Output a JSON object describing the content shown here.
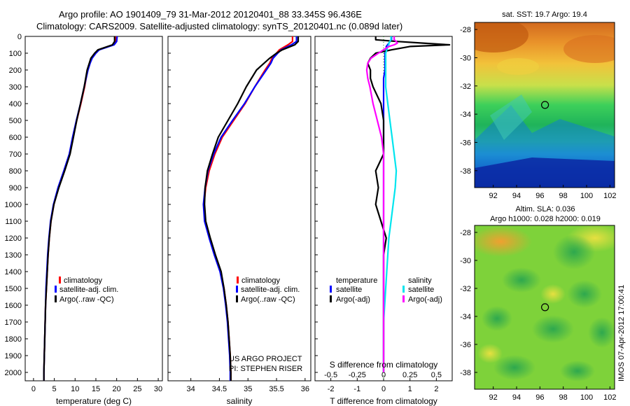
{
  "header": {
    "title_line1": "Argo profile: AO 1901409_79 31-Mar-2012 20120401_88 33.345S 96.436E",
    "title_line2": "Climatology: CARS2009. Satellite-adjusted climatology: synTS_20120401.nc (0.089d later)"
  },
  "colors": {
    "climatology": "#ff0000",
    "satellite": "#0000ff",
    "argo": "#000000",
    "salinity_satellite": "#00e5ee",
    "salinity_argo": "#ff00ff"
  },
  "legend_profile": {
    "climatology": "climatology",
    "satellite": "satellite-adj. clim.",
    "argo": "Argo(..raw -QC)"
  },
  "legend_diff": {
    "temperature_header": "temperature",
    "salinity_header": "salinity",
    "t_satellite": "satellite",
    "t_argo": "Argo(-adj)",
    "s_satellite": "satellite",
    "s_argo": "Argo(-adj)"
  },
  "credits": {
    "project": "US ARGO PROJECT",
    "pi": "PI: STEPHEN RISER"
  },
  "map_sst": {
    "title": "sat. SST: 19.7 Argo: 19.4"
  },
  "map_sla": {
    "title_line1": "Altim. SLA: 0.036",
    "title_line2": "Argo h1000: 0.028 h2000: 0.019"
  },
  "footer": {
    "stamp": "IMOS 07-Apr-2012 17:00:41"
  },
  "chart_data": [
    {
      "type": "line",
      "xlabel": "temperature (deg C)",
      "xlim": [
        -2,
        31
      ],
      "ylim": [
        0,
        2050
      ],
      "y_inverted": true,
      "xticks": [
        "0",
        "5",
        "10",
        "15",
        "20",
        "25",
        "30"
      ],
      "yticks": [
        "0",
        "100",
        "200",
        "300",
        "400",
        "500",
        "600",
        "700",
        "800",
        "900",
        "1000",
        "1100",
        "1200",
        "1300",
        "1400",
        "1500",
        "1600",
        "1700",
        "1800",
        "1900",
        "2000"
      ],
      "depth": [
        0,
        30,
        50,
        80,
        100,
        130,
        160,
        200,
        300,
        400,
        500,
        600,
        700,
        800,
        900,
        1000,
        1100,
        1200,
        1300,
        1400,
        1500,
        1600,
        1700,
        1800,
        1900,
        2000,
        2050
      ],
      "series": [
        {
          "name": "climatology",
          "values": [
            19.8,
            19.8,
            19.2,
            15.6,
            14.9,
            14.0,
            13.5,
            13.0,
            12.3,
            11.4,
            10.4,
            9.5,
            8.7,
            7.4,
            6.0,
            4.9,
            4.2,
            3.8,
            3.5,
            3.3,
            3.1,
            2.9,
            2.8,
            2.7,
            2.6,
            2.5,
            2.5
          ]
        },
        {
          "name": "satellite-adj. clim.",
          "values": [
            20.1,
            20.0,
            19.4,
            15.8,
            15.0,
            14.1,
            13.6,
            13.1,
            12.2,
            11.3,
            10.3,
            9.4,
            8.6,
            7.3,
            5.9,
            4.8,
            4.1,
            3.7,
            3.4,
            3.2,
            3.0,
            2.9,
            2.8,
            2.7,
            2.6,
            2.5,
            2.5
          ]
        },
        {
          "name": "Argo(..raw -QC)",
          "values": [
            19.5,
            19.5,
            19.0,
            15.5,
            14.7,
            13.8,
            13.4,
            12.9,
            12.2,
            11.3,
            10.4,
            9.6,
            8.8,
            7.5,
            6.1,
            4.9,
            4.2,
            3.8,
            3.5,
            3.3,
            3.1,
            2.9,
            2.8,
            2.7,
            2.6,
            2.5,
            2.5
          ]
        }
      ]
    },
    {
      "type": "line",
      "xlabel": "salinity",
      "xlim": [
        33.6,
        36.1
      ],
      "ylim": [
        0,
        2050
      ],
      "y_inverted": true,
      "xticks": [
        "34",
        "34.5",
        "35",
        "35.5",
        "36"
      ],
      "depth": [
        0,
        30,
        50,
        80,
        100,
        130,
        160,
        200,
        300,
        400,
        500,
        600,
        700,
        800,
        900,
        1000,
        1100,
        1200,
        1300,
        1400,
        1500,
        1600,
        1700,
        1800,
        1900,
        2000,
        2050
      ],
      "series": [
        {
          "name": "climatology",
          "values": [
            35.78,
            35.78,
            35.7,
            35.55,
            35.5,
            35.42,
            35.38,
            35.3,
            35.12,
            34.95,
            34.75,
            34.55,
            34.42,
            34.32,
            34.26,
            34.23,
            34.25,
            34.33,
            34.42,
            34.52,
            34.58,
            34.62,
            34.65,
            34.67,
            34.69,
            34.7,
            34.7
          ]
        },
        {
          "name": "satellite-adj. clim.",
          "values": [
            35.85,
            35.85,
            35.76,
            35.58,
            35.52,
            35.44,
            35.4,
            35.32,
            35.12,
            34.94,
            34.73,
            34.53,
            34.4,
            34.3,
            34.25,
            34.22,
            34.24,
            34.32,
            34.41,
            34.51,
            34.57,
            34.61,
            34.64,
            34.66,
            34.68,
            34.69,
            34.69
          ]
        },
        {
          "name": "Argo(..raw -QC)",
          "values": [
            35.88,
            35.88,
            35.82,
            35.6,
            35.5,
            35.38,
            35.28,
            35.15,
            34.97,
            34.82,
            34.65,
            34.48,
            34.38,
            34.29,
            34.25,
            34.24,
            34.26,
            34.34,
            34.43,
            34.53,
            34.58,
            34.62,
            34.65,
            34.67,
            34.69,
            34.7,
            34.7
          ]
        }
      ]
    },
    {
      "type": "line",
      "xlabel": "T difference from climatology",
      "x2label": "S difference from climatology",
      "xlim": [
        -2.6,
        2.6
      ],
      "x2lim": [
        -0.65,
        0.65
      ],
      "ylim": [
        0,
        2050
      ],
      "y_inverted": true,
      "xticks": [
        "-2",
        "-1",
        "0",
        "1",
        "2"
      ],
      "x2ticks": [
        "-0.5",
        "-0.25",
        "0",
        "0.25",
        "0.5"
      ],
      "depth": [
        0,
        20,
        30,
        40,
        50,
        60,
        80,
        100,
        130,
        160,
        200,
        250,
        300,
        400,
        500,
        600,
        700,
        800,
        900,
        1000,
        1100,
        1200,
        1300,
        1400,
        1500,
        1600,
        1700,
        1800,
        1900,
        2000
      ],
      "series": [
        {
          "name": "temperature satellite",
          "axis": "T",
          "values": [
            0.3,
            0.3,
            0.25,
            0.2,
            0.15,
            0.1,
            0.1,
            0.05,
            0.05,
            0.05,
            0.05,
            0.0,
            0.0,
            0.0,
            0.0,
            0.0,
            0.0,
            0.0,
            0.0,
            0.0,
            0.0,
            0.0,
            0.0,
            0.0,
            0.0,
            0.0,
            0.0,
            0.0,
            0.0,
            0.0
          ]
        },
        {
          "name": "temperature Argo(-adj)",
          "axis": "T",
          "values": [
            -0.3,
            -0.3,
            0.5,
            1.5,
            2.5,
            1.0,
            0.3,
            -0.3,
            -0.5,
            -0.6,
            -0.5,
            -0.5,
            -0.4,
            -0.1,
            0.0,
            0.0,
            0.0,
            -0.3,
            -0.2,
            -0.3,
            -0.1,
            0.1,
            0.0,
            0.0,
            0.0,
            0.0,
            0.0,
            0.0,
            0.0,
            0.0
          ]
        },
        {
          "name": "salinity satellite",
          "axis": "S",
          "values": [
            0.07,
            0.07,
            0.06,
            0.05,
            0.05,
            0.04,
            0.03,
            0.02,
            0.02,
            0.02,
            0.02,
            0.02,
            0.02,
            0.04,
            0.06,
            0.08,
            0.1,
            0.12,
            0.11,
            0.09,
            0.07,
            0.05,
            0.04,
            0.03,
            0.02,
            0.01,
            0.0,
            0.0,
            0.0,
            0.0
          ]
        },
        {
          "name": "salinity Argo(-adj)",
          "axis": "S",
          "values": [
            0.1,
            0.1,
            0.12,
            0.13,
            0.1,
            0.05,
            0.0,
            -0.05,
            -0.12,
            -0.15,
            -0.16,
            -0.15,
            -0.13,
            -0.1,
            -0.06,
            -0.02,
            0.0,
            0.0,
            0.0,
            0.0,
            0.0,
            0.0,
            0.0,
            0.0,
            0.0,
            0.0,
            0.0,
            0.0,
            0.0,
            0.0
          ]
        }
      ]
    },
    {
      "type": "heatmap",
      "title": "sat. SST: 19.7 Argo: 19.4",
      "xlim": [
        90.4,
        102.4
      ],
      "ylim": [
        -39.2,
        -27.5
      ],
      "xticks": [
        "92",
        "94",
        "96",
        "98",
        "100",
        "102"
      ],
      "yticks": [
        "-28",
        "-30",
        "-32",
        "-34",
        "-36",
        "-38"
      ],
      "marker": {
        "lon": 96.436,
        "lat": -33.345
      }
    },
    {
      "type": "heatmap",
      "title": "Altim. SLA: 0.036 / Argo h1000: 0.028 h2000: 0.019",
      "xlim": [
        90.4,
        102.4
      ],
      "ylim": [
        -39.2,
        -27.5
      ],
      "xticks": [
        "92",
        "94",
        "96",
        "98",
        "100",
        "102"
      ],
      "yticks": [
        "-28",
        "-30",
        "-32",
        "-34",
        "-36",
        "-38"
      ],
      "marker": {
        "lon": 96.436,
        "lat": -33.345
      }
    }
  ]
}
